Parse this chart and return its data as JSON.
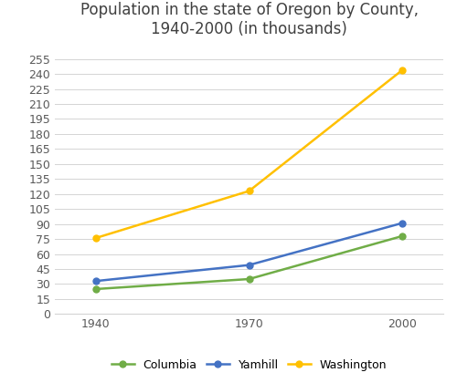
{
  "title": "Population in the state of Oregon by County,\n1940-2000 (in thousands)",
  "years": [
    1940,
    1970,
    2000
  ],
  "series": {
    "Columbia": {
      "values": [
        25,
        35,
        78
      ],
      "color": "#70ad47",
      "marker": "o"
    },
    "Yamhill": {
      "values": [
        33,
        49,
        91
      ],
      "color": "#4472c4",
      "marker": "o"
    },
    "Washington": {
      "values": [
        76,
        123,
        244
      ],
      "color": "#ffc000",
      "marker": "o"
    }
  },
  "yticks": [
    0,
    15,
    30,
    45,
    60,
    75,
    90,
    105,
    120,
    135,
    150,
    165,
    180,
    195,
    210,
    225,
    240,
    255
  ],
  "ylim": [
    0,
    268
  ],
  "xlim": [
    1932,
    2008
  ],
  "background_color": "#ffffff",
  "grid_color": "#d4d4d4",
  "title_fontsize": 12,
  "tick_fontsize": 9,
  "legend_fontsize": 9,
  "line_width": 1.8,
  "marker_size": 5
}
